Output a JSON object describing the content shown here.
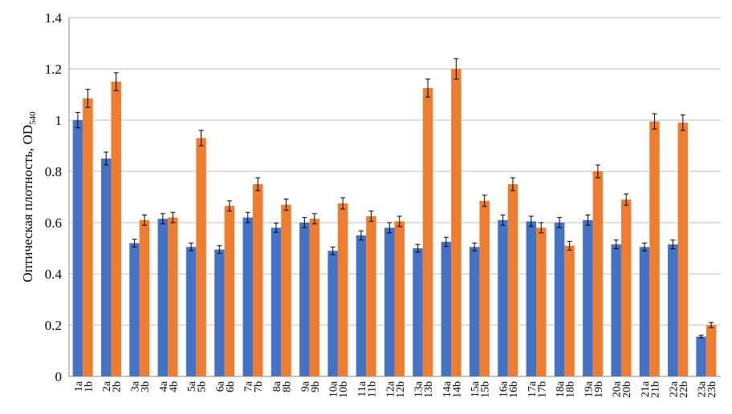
{
  "chart_data": {
    "type": "bar",
    "title": "",
    "xlabel": "",
    "ylabel": "Оптическая плотность, OD",
    "ylabel_subscript": "540",
    "ylim": [
      0,
      1.4
    ],
    "yticks": [
      "0",
      "0.2",
      "0.4",
      "0.6",
      "0.8",
      "1",
      "1.2",
      "1.4"
    ],
    "grid": true,
    "colors": {
      "a": "#4472C4",
      "b": "#ED7D31",
      "error": "#000000"
    },
    "groups": [
      "1",
      "2",
      "3",
      "4",
      "5",
      "6",
      "7",
      "8",
      "9",
      "10",
      "11",
      "12",
      "13",
      "14",
      "15",
      "16",
      "17",
      "18",
      "19",
      "20",
      "21",
      "22",
      "23"
    ],
    "series": [
      {
        "name": "a",
        "labels": [
          "1a",
          "2a",
          "3a",
          "4a",
          "5a",
          "6a",
          "7a",
          "8a",
          "9a",
          "10a",
          "11a",
          "12a",
          "13a",
          "14a",
          "15a",
          "16a",
          "17a",
          "18a",
          "19a",
          "20a",
          "21a",
          "22a",
          "23a"
        ],
        "values": [
          1.0,
          0.85,
          0.52,
          0.615,
          0.505,
          0.495,
          0.62,
          0.58,
          0.6,
          0.49,
          0.55,
          0.58,
          0.5,
          0.525,
          0.505,
          0.61,
          0.605,
          0.6,
          0.61,
          0.515,
          0.505,
          0.515,
          0.155
        ],
        "errors": [
          0.03,
          0.025,
          0.015,
          0.02,
          0.015,
          0.015,
          0.02,
          0.018,
          0.02,
          0.015,
          0.018,
          0.02,
          0.015,
          0.018,
          0.015,
          0.02,
          0.02,
          0.02,
          0.02,
          0.017,
          0.015,
          0.017,
          0.005
        ]
      },
      {
        "name": "b",
        "labels": [
          "1b",
          "2b",
          "3b",
          "4b",
          "5b",
          "6b",
          "7b",
          "8b",
          "9b",
          "10b",
          "11b",
          "12b",
          "13b",
          "14b",
          "15b",
          "16b",
          "17b",
          "18b",
          "19b",
          "20b",
          "21b",
          "22b",
          "23b"
        ],
        "values": [
          1.085,
          1.15,
          0.61,
          0.62,
          0.93,
          0.665,
          0.75,
          0.67,
          0.615,
          0.675,
          0.625,
          0.605,
          1.125,
          1.2,
          0.685,
          0.75,
          0.58,
          0.51,
          0.8,
          0.69,
          0.995,
          0.99,
          0.2
        ],
        "errors": [
          0.035,
          0.035,
          0.02,
          0.02,
          0.03,
          0.02,
          0.025,
          0.022,
          0.02,
          0.022,
          0.02,
          0.02,
          0.035,
          0.04,
          0.022,
          0.025,
          0.02,
          0.017,
          0.025,
          0.022,
          0.03,
          0.03,
          0.01
        ]
      }
    ]
  }
}
